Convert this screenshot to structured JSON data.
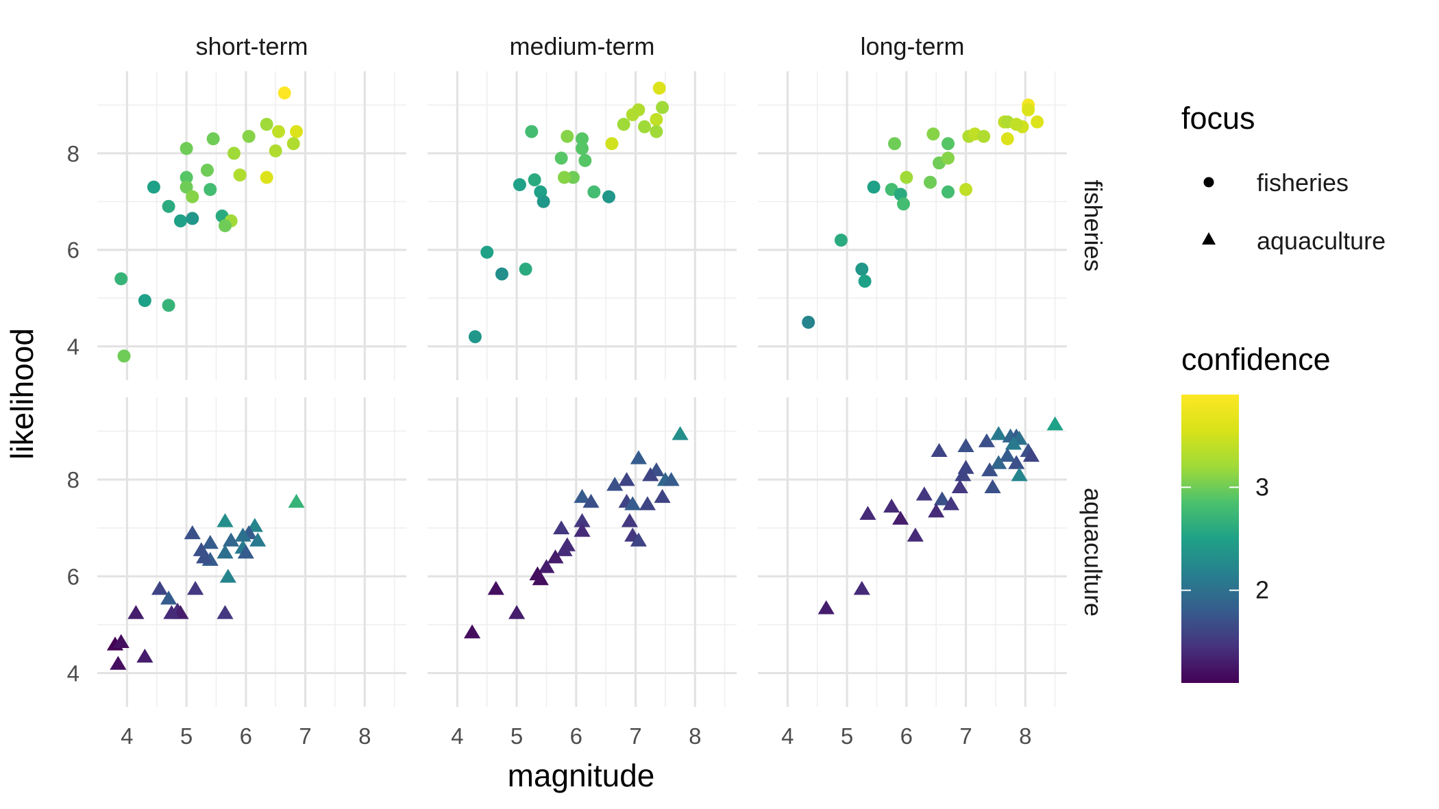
{
  "chart_data": {
    "type": "scatter",
    "xlabel": "magnitude",
    "ylabel": "likelihood",
    "xlim": [
      3.5,
      8.7
    ],
    "ylim": [
      3.3,
      9.7
    ],
    "x_ticks": [
      4,
      5,
      6,
      7,
      8
    ],
    "y_ticks": [
      4,
      6,
      8
    ],
    "column_facets": [
      "short-term",
      "medium-term",
      "long-term"
    ],
    "row_facets": [
      "fisheries",
      "aquaculture"
    ],
    "legend": {
      "shape_title": "focus",
      "shape_entries": [
        {
          "label": "fisheries",
          "shape": "circle"
        },
        {
          "label": "aquaculture",
          "shape": "triangle"
        }
      ],
      "color_title": "confidence",
      "color_range": [
        1.1,
        3.9
      ],
      "color_ticks": [
        2,
        3
      ],
      "colorscale": "viridis",
      "position": "right"
    },
    "panels": [
      {
        "row": "fisheries",
        "col": "short-term",
        "points": [
          [
            6.65,
            9.25,
            3.9
          ],
          [
            6.35,
            8.6,
            3.2
          ],
          [
            6.55,
            8.45,
            3.4
          ],
          [
            6.85,
            8.45,
            3.6
          ],
          [
            6.8,
            8.2,
            3.3
          ],
          [
            6.05,
            8.35,
            3.1
          ],
          [
            5.45,
            8.3,
            3.0
          ],
          [
            5.0,
            8.1,
            3.0
          ],
          [
            5.8,
            8.0,
            3.2
          ],
          [
            6.5,
            8.05,
            3.3
          ],
          [
            5.35,
            7.65,
            3.0
          ],
          [
            5.0,
            7.5,
            2.9
          ],
          [
            5.9,
            7.55,
            3.3
          ],
          [
            6.35,
            7.5,
            3.6
          ],
          [
            4.45,
            7.3,
            2.5
          ],
          [
            5.0,
            7.3,
            3.0
          ],
          [
            5.1,
            7.1,
            3.1
          ],
          [
            5.4,
            7.25,
            2.8
          ],
          [
            4.7,
            6.9,
            2.6
          ],
          [
            4.9,
            6.6,
            2.5
          ],
          [
            5.1,
            6.65,
            2.4
          ],
          [
            5.6,
            6.7,
            2.6
          ],
          [
            5.75,
            6.6,
            3.2
          ],
          [
            5.65,
            6.5,
            3.0
          ],
          [
            3.9,
            5.4,
            2.7
          ],
          [
            4.3,
            4.95,
            2.5
          ],
          [
            4.7,
            4.85,
            2.7
          ],
          [
            3.95,
            3.8,
            3.0
          ]
        ]
      },
      {
        "row": "fisheries",
        "col": "medium-term",
        "points": [
          [
            7.4,
            9.35,
            3.6
          ],
          [
            7.05,
            8.9,
            3.3
          ],
          [
            7.45,
            8.95,
            3.2
          ],
          [
            6.95,
            8.8,
            3.3
          ],
          [
            7.35,
            8.7,
            3.4
          ],
          [
            6.8,
            8.6,
            3.2
          ],
          [
            7.15,
            8.55,
            3.2
          ],
          [
            7.35,
            8.45,
            3.2
          ],
          [
            5.25,
            8.45,
            2.8
          ],
          [
            5.85,
            8.35,
            3.1
          ],
          [
            6.1,
            8.3,
            2.9
          ],
          [
            6.1,
            8.1,
            2.9
          ],
          [
            6.6,
            8.2,
            3.5
          ],
          [
            5.75,
            7.9,
            2.9
          ],
          [
            6.15,
            7.85,
            2.9
          ],
          [
            5.95,
            7.5,
            3.0
          ],
          [
            5.8,
            7.5,
            3.1
          ],
          [
            5.3,
            7.45,
            2.6
          ],
          [
            5.05,
            7.35,
            2.5
          ],
          [
            5.4,
            7.2,
            2.5
          ],
          [
            6.3,
            7.2,
            2.8
          ],
          [
            6.55,
            7.1,
            2.4
          ],
          [
            5.45,
            7.0,
            2.4
          ],
          [
            4.5,
            5.95,
            2.5
          ],
          [
            4.75,
            5.5,
            2.3
          ],
          [
            5.15,
            5.6,
            2.6
          ],
          [
            4.3,
            4.2,
            2.4
          ]
        ]
      },
      {
        "row": "fisheries",
        "col": "long-term",
        "points": [
          [
            8.05,
            9.0,
            3.8
          ],
          [
            8.05,
            8.9,
            3.6
          ],
          [
            7.65,
            8.65,
            3.4
          ],
          [
            7.7,
            8.65,
            3.3
          ],
          [
            7.95,
            8.55,
            3.5
          ],
          [
            8.2,
            8.65,
            3.6
          ],
          [
            7.85,
            8.6,
            3.4
          ],
          [
            7.7,
            8.3,
            3.6
          ],
          [
            7.05,
            8.35,
            3.3
          ],
          [
            7.15,
            8.4,
            3.4
          ],
          [
            7.3,
            8.35,
            3.3
          ],
          [
            6.45,
            8.4,
            3.1
          ],
          [
            6.7,
            8.2,
            2.9
          ],
          [
            5.8,
            8.2,
            3.0
          ],
          [
            6.55,
            7.8,
            3.0
          ],
          [
            6.7,
            7.9,
            3.1
          ],
          [
            6.4,
            7.4,
            3.0
          ],
          [
            6.0,
            7.5,
            3.2
          ],
          [
            5.45,
            7.3,
            2.5
          ],
          [
            5.75,
            7.25,
            2.8
          ],
          [
            5.9,
            7.15,
            2.6
          ],
          [
            5.95,
            6.95,
            2.8
          ],
          [
            6.7,
            7.2,
            2.8
          ],
          [
            7.0,
            7.25,
            3.4
          ],
          [
            4.9,
            6.2,
            2.6
          ],
          [
            5.25,
            5.6,
            2.4
          ],
          [
            5.3,
            5.35,
            2.5
          ],
          [
            4.35,
            4.5,
            2.2
          ]
        ]
      },
      {
        "row": "aquaculture",
        "col": "short-term",
        "points": [
          [
            6.85,
            7.55,
            2.7
          ],
          [
            5.65,
            7.15,
            2.3
          ],
          [
            6.15,
            7.05,
            2.2
          ],
          [
            6.05,
            6.9,
            1.8
          ],
          [
            5.95,
            6.85,
            2.0
          ],
          [
            5.1,
            6.9,
            1.7
          ],
          [
            5.75,
            6.75,
            1.9
          ],
          [
            5.4,
            6.7,
            1.8
          ],
          [
            6.2,
            6.75,
            2.1
          ],
          [
            5.25,
            6.55,
            1.7
          ],
          [
            5.95,
            6.6,
            2.1
          ],
          [
            5.65,
            6.5,
            2.0
          ],
          [
            5.4,
            6.35,
            1.8
          ],
          [
            5.3,
            6.4,
            1.7
          ],
          [
            6.0,
            6.5,
            1.8
          ],
          [
            5.7,
            6.0,
            2.2
          ],
          [
            4.55,
            5.75,
            1.6
          ],
          [
            5.15,
            5.75,
            1.5
          ],
          [
            4.7,
            5.55,
            1.8
          ],
          [
            4.85,
            5.3,
            1.4
          ],
          [
            4.9,
            5.25,
            1.3
          ],
          [
            4.75,
            5.25,
            1.4
          ],
          [
            5.65,
            5.25,
            1.5
          ],
          [
            4.15,
            5.25,
            1.3
          ],
          [
            3.8,
            4.6,
            1.1
          ],
          [
            3.9,
            4.65,
            1.2
          ],
          [
            3.85,
            4.2,
            1.2
          ],
          [
            4.3,
            4.35,
            1.3
          ]
        ]
      },
      {
        "row": "aquaculture",
        "col": "medium-term",
        "points": [
          [
            7.75,
            8.95,
            2.3
          ],
          [
            7.05,
            8.45,
            1.8
          ],
          [
            7.35,
            8.2,
            1.7
          ],
          [
            7.25,
            8.1,
            1.6
          ],
          [
            7.5,
            8.0,
            1.9
          ],
          [
            7.6,
            8.0,
            1.8
          ],
          [
            6.85,
            8.0,
            1.6
          ],
          [
            6.65,
            7.9,
            1.7
          ],
          [
            6.1,
            7.65,
            1.8
          ],
          [
            6.25,
            7.55,
            1.7
          ],
          [
            6.85,
            7.55,
            1.6
          ],
          [
            6.95,
            7.5,
            1.8
          ],
          [
            7.45,
            7.65,
            1.6
          ],
          [
            7.2,
            7.5,
            1.6
          ],
          [
            6.1,
            7.15,
            1.5
          ],
          [
            6.9,
            7.15,
            1.5
          ],
          [
            5.75,
            7.0,
            1.5
          ],
          [
            6.1,
            6.95,
            1.4
          ],
          [
            6.95,
            6.85,
            1.5
          ],
          [
            7.05,
            6.75,
            1.6
          ],
          [
            5.85,
            6.65,
            1.4
          ],
          [
            5.8,
            6.55,
            1.4
          ],
          [
            5.65,
            6.4,
            1.3
          ],
          [
            5.5,
            6.2,
            1.3
          ],
          [
            5.35,
            6.05,
            1.2
          ],
          [
            5.4,
            5.95,
            1.2
          ],
          [
            4.65,
            5.75,
            1.2
          ],
          [
            5.0,
            5.25,
            1.3
          ],
          [
            4.25,
            4.85,
            1.2
          ]
        ]
      },
      {
        "row": "aquaculture",
        "col": "long-term",
        "points": [
          [
            8.5,
            9.15,
            2.5
          ],
          [
            7.55,
            8.95,
            2.1
          ],
          [
            7.75,
            8.9,
            1.9
          ],
          [
            7.85,
            8.9,
            1.8
          ],
          [
            7.9,
            8.85,
            2.0
          ],
          [
            7.35,
            8.8,
            1.7
          ],
          [
            7.0,
            8.7,
            1.7
          ],
          [
            7.8,
            8.75,
            2.1
          ],
          [
            8.05,
            8.6,
            1.7
          ],
          [
            8.1,
            8.5,
            1.6
          ],
          [
            6.55,
            8.6,
            1.6
          ],
          [
            7.7,
            8.5,
            1.8
          ],
          [
            7.55,
            8.35,
            1.9
          ],
          [
            7.85,
            8.35,
            1.7
          ],
          [
            7.0,
            8.25,
            1.6
          ],
          [
            7.4,
            8.2,
            1.7
          ],
          [
            6.95,
            8.1,
            1.6
          ],
          [
            7.9,
            8.1,
            2.2
          ],
          [
            6.9,
            7.85,
            1.5
          ],
          [
            7.45,
            7.85,
            1.7
          ],
          [
            6.3,
            7.7,
            1.5
          ],
          [
            6.6,
            7.6,
            1.7
          ],
          [
            6.75,
            7.5,
            1.5
          ],
          [
            6.5,
            7.35,
            1.4
          ],
          [
            5.75,
            7.45,
            1.4
          ],
          [
            5.9,
            7.2,
            1.3
          ],
          [
            5.35,
            7.3,
            1.4
          ],
          [
            6.15,
            6.85,
            1.4
          ],
          [
            5.25,
            5.75,
            1.4
          ],
          [
            4.65,
            5.35,
            1.3
          ]
        ]
      }
    ]
  }
}
